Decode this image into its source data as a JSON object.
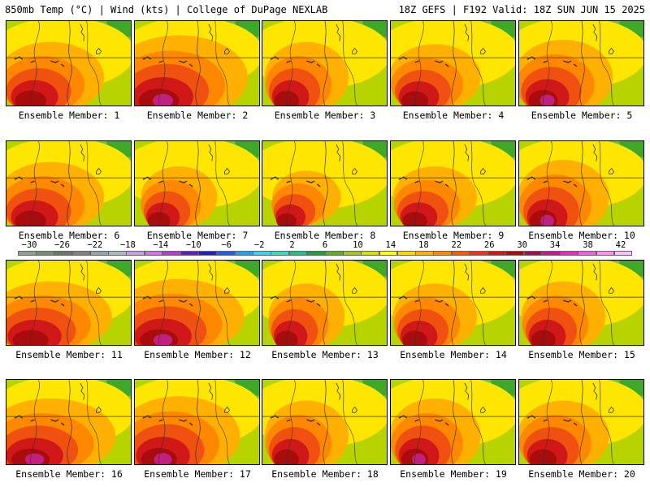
{
  "header": {
    "left": "850mb Temp (°C) | Wind (kts) | College of DuPage NEXLAB",
    "right": "18Z GEFS | F192 Valid: 18Z SUN JUN 15 2025"
  },
  "members": [
    {
      "label": "Ensemble Member: 1",
      "heat": 0.8,
      "west": 0.7
    },
    {
      "label": "Ensemble Member: 2",
      "heat": 0.95,
      "west": 0.9
    },
    {
      "label": "Ensemble Member: 3",
      "heat": 0.8,
      "west": 0.55
    },
    {
      "label": "Ensemble Member: 4",
      "heat": 0.75,
      "west": 0.6
    },
    {
      "label": "Ensemble Member: 5",
      "heat": 0.85,
      "west": 0.65
    },
    {
      "label": "Ensemble Member: 6",
      "heat": 0.8,
      "west": 0.7
    },
    {
      "label": "Ensemble Member: 7",
      "heat": 0.7,
      "west": 0.5
    },
    {
      "label": "Ensemble Member: 8",
      "heat": 0.6,
      "west": 0.45
    },
    {
      "label": "Ensemble Member: 9",
      "heat": 0.7,
      "west": 0.55
    },
    {
      "label": "Ensemble Member: 10",
      "heat": 0.85,
      "west": 0.6
    },
    {
      "label": "Ensemble Member: 11",
      "heat": 0.8,
      "west": 0.8
    },
    {
      "label": "Ensemble Member: 12",
      "heat": 0.85,
      "west": 0.85
    },
    {
      "label": "Ensemble Member: 13",
      "heat": 0.75,
      "west": 0.5
    },
    {
      "label": "Ensemble Member: 14",
      "heat": 0.75,
      "west": 0.55
    },
    {
      "label": "Ensemble Member: 15",
      "heat": 0.8,
      "west": 0.55
    },
    {
      "label": "Ensemble Member: 16",
      "heat": 0.85,
      "west": 0.85
    },
    {
      "label": "Ensemble Member: 17",
      "heat": 0.9,
      "west": 0.8
    },
    {
      "label": "Ensemble Member: 18",
      "heat": 0.8,
      "west": 0.55
    },
    {
      "label": "Ensemble Member: 19",
      "heat": 0.85,
      "west": 0.6
    },
    {
      "label": "Ensemble Member: 20",
      "heat": 0.8,
      "west": 0.6
    }
  ],
  "colorbar": {
    "labels": [
      "−30",
      "−26",
      "−22",
      "−18",
      "−14",
      "−10",
      "−6",
      "−2",
      "2",
      "6",
      "10",
      "14",
      "18",
      "22",
      "26",
      "30",
      "34",
      "38",
      "42"
    ],
    "colors": [
      "#8fa08f",
      "#7c8c7c",
      "#6a7a6a",
      "#808080",
      "#9aa0a8",
      "#b0b8c4",
      "#c8a0e0",
      "#d870e8",
      "#b040d0",
      "#6020c0",
      "#2020c0",
      "#2060e0",
      "#20a0f0",
      "#40d0f0",
      "#40d8c0",
      "#20c080",
      "#20a040",
      "#60b020",
      "#a0c820",
      "#d8e000",
      "#ffff00",
      "#ffd800",
      "#ffb000",
      "#ff8800",
      "#ff5800",
      "#f03020",
      "#d01818",
      "#a80c0c",
      "#a01050",
      "#c81890",
      "#e030c0",
      "#f060e0",
      "#ff90f0",
      "#ffc0ff"
    ]
  }
}
